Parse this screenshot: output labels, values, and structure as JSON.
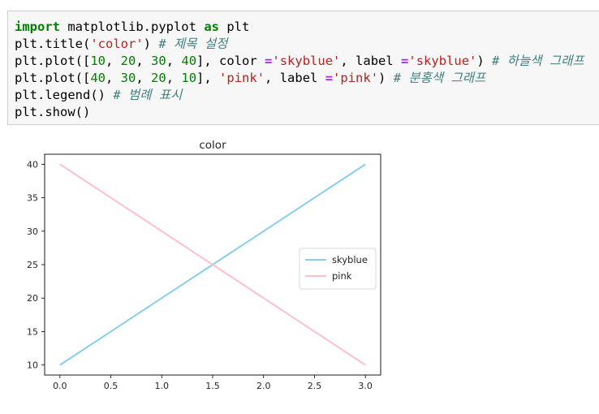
{
  "notebook": {
    "code_lines": [
      [
        {
          "t": "import",
          "c": "kw"
        },
        {
          "t": " matplotlib.pyplot ",
          "c": ""
        },
        {
          "t": "as",
          "c": "kw"
        },
        {
          "t": " plt",
          "c": ""
        }
      ],
      [
        {
          "t": "plt.title(",
          "c": ""
        },
        {
          "t": "'color'",
          "c": "str"
        },
        {
          "t": ") ",
          "c": ""
        },
        {
          "t": "# 제목 설정",
          "c": "com"
        }
      ],
      [
        {
          "t": "plt.plot([",
          "c": ""
        },
        {
          "t": "10",
          "c": "num"
        },
        {
          "t": ", ",
          "c": ""
        },
        {
          "t": "20",
          "c": "num"
        },
        {
          "t": ", ",
          "c": ""
        },
        {
          "t": "30",
          "c": "num"
        },
        {
          "t": ", ",
          "c": ""
        },
        {
          "t": "40",
          "c": "num"
        },
        {
          "t": "], color ",
          "c": ""
        },
        {
          "t": "=",
          "c": "op"
        },
        {
          "t": "'skyblue'",
          "c": "str"
        },
        {
          "t": ", label ",
          "c": ""
        },
        {
          "t": "=",
          "c": "op"
        },
        {
          "t": "'skyblue'",
          "c": "str"
        },
        {
          "t": ") ",
          "c": ""
        },
        {
          "t": "# 하늘색 그래프",
          "c": "com"
        }
      ],
      [
        {
          "t": "plt.plot([",
          "c": ""
        },
        {
          "t": "40",
          "c": "num"
        },
        {
          "t": ", ",
          "c": ""
        },
        {
          "t": "30",
          "c": "num"
        },
        {
          "t": ", ",
          "c": ""
        },
        {
          "t": "20",
          "c": "num"
        },
        {
          "t": ", ",
          "c": ""
        },
        {
          "t": "10",
          "c": "num"
        },
        {
          "t": "], ",
          "c": ""
        },
        {
          "t": "'pink'",
          "c": "str"
        },
        {
          "t": ", label ",
          "c": ""
        },
        {
          "t": "=",
          "c": "op"
        },
        {
          "t": "'pink'",
          "c": "str"
        },
        {
          "t": ") ",
          "c": ""
        },
        {
          "t": "# 분홍색 그래프",
          "c": "com"
        }
      ],
      [
        {
          "t": "plt.legend() ",
          "c": ""
        },
        {
          "t": "# 범례 표시",
          "c": "com"
        }
      ],
      [
        {
          "t": "plt.show()",
          "c": ""
        }
      ]
    ]
  },
  "chart_data": {
    "type": "line",
    "title": "color",
    "xlabel": "",
    "ylabel": "",
    "x": [
      0,
      1,
      2,
      3
    ],
    "series": [
      {
        "name": "skyblue",
        "values": [
          10,
          20,
          30,
          40
        ],
        "color": "#87ceeb"
      },
      {
        "name": "pink",
        "values": [
          40,
          30,
          20,
          10
        ],
        "color": "#ffc0cb"
      }
    ],
    "xlim": [
      -0.15,
      3.15
    ],
    "ylim": [
      8.5,
      41.5
    ],
    "xticks": [
      0.0,
      0.5,
      1.0,
      1.5,
      2.0,
      2.5,
      3.0
    ],
    "xtick_labels": [
      "0.0",
      "0.5",
      "1.0",
      "1.5",
      "2.0",
      "2.5",
      "3.0"
    ],
    "yticks": [
      10,
      15,
      20,
      25,
      30,
      35,
      40
    ],
    "ytick_labels": [
      "10",
      "15",
      "20",
      "25",
      "30",
      "35",
      "40"
    ],
    "grid": false,
    "legend": "center-right"
  }
}
